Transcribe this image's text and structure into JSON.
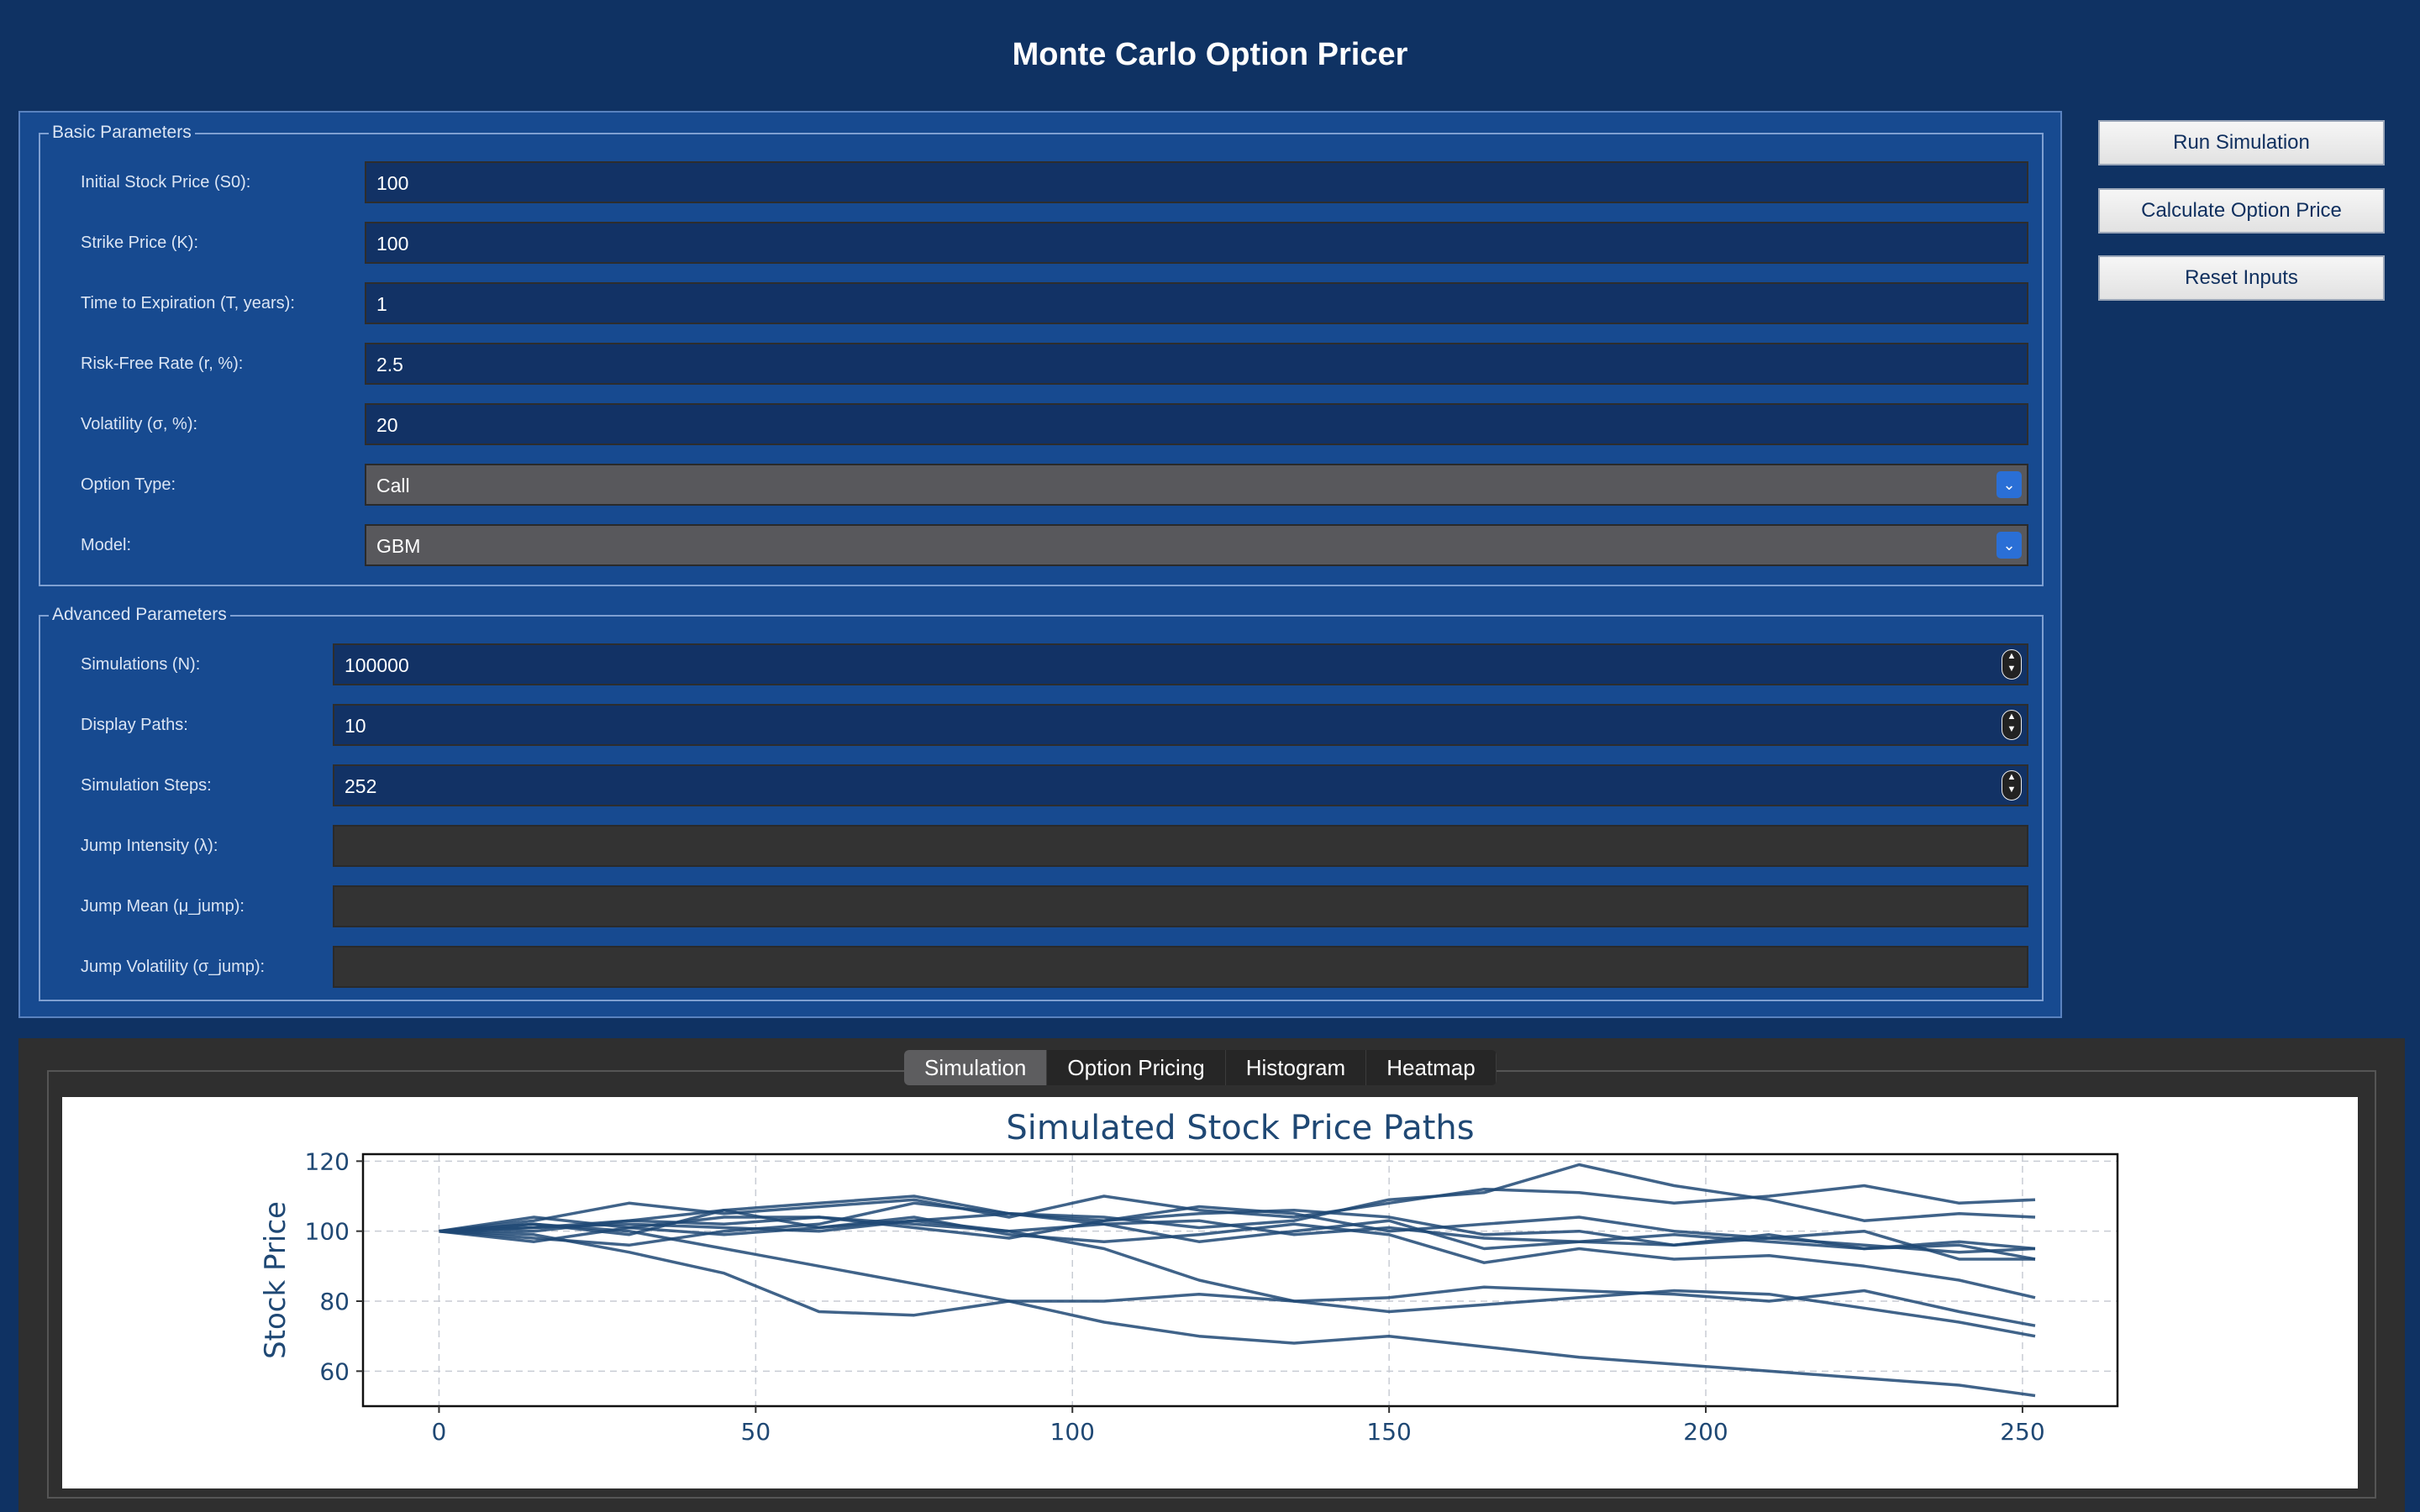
{
  "window": {
    "title": "Monte Carlo Option Pricer"
  },
  "basic": {
    "title": "Basic Parameters",
    "rows": [
      {
        "label": "Initial Stock Price (S0):",
        "value": "100"
      },
      {
        "label": "Strike Price (K):",
        "value": "100"
      },
      {
        "label": "Time to Expiration (T, years):",
        "value": "1"
      },
      {
        "label": "Risk-Free Rate (r, %):",
        "value": "2.5"
      },
      {
        "label": "Volatility (σ, %):",
        "value": "20"
      },
      {
        "label": "Option Type:",
        "value": "Call"
      },
      {
        "label": "Model:",
        "value": "GBM"
      }
    ]
  },
  "advanced": {
    "title": "Advanced Parameters",
    "rows": [
      {
        "label": "Simulations (N):",
        "value": "100000"
      },
      {
        "label": "Display Paths:",
        "value": "10"
      },
      {
        "label": "Simulation Steps:",
        "value": "252"
      },
      {
        "label": "Jump Intensity (λ):",
        "value": ""
      },
      {
        "label": "Jump Mean (μ_jump):",
        "value": ""
      },
      {
        "label": "Jump Volatility (σ_jump):",
        "value": ""
      }
    ]
  },
  "buttons": {
    "run": "Run Simulation",
    "calculate": "Calculate Option Price",
    "reset": "Reset Inputs"
  },
  "tabs": [
    "Simulation",
    "Option Pricing",
    "Histogram",
    "Heatmap"
  ],
  "active_tab": "Simulation",
  "colors": {
    "background": "#0f3263",
    "panel": "#174a90",
    "line": "#1f4874",
    "accent": "#2a6fd6"
  },
  "chart_data": {
    "type": "line",
    "title": "Simulated Stock Price Paths",
    "xlabel": "",
    "ylabel": "Stock Price",
    "xlim": [
      -12,
      265
    ],
    "ylim": [
      50,
      122
    ],
    "xticks": [
      0,
      50,
      100,
      150,
      200,
      250
    ],
    "yticks": [
      60,
      80,
      100,
      120
    ],
    "grid": true,
    "x": [
      0,
      15,
      30,
      45,
      60,
      75,
      90,
      105,
      120,
      135,
      150,
      165,
      180,
      195,
      210,
      225,
      240,
      252
    ],
    "series": [
      {
        "values": [
          100,
          103,
          108,
          105,
          107,
          109,
          104,
          110,
          106,
          104,
          108,
          112,
          111,
          108,
          110,
          113,
          108,
          109
        ]
      },
      {
        "values": [
          100,
          98,
          96,
          100,
          102,
          108,
          105,
          104,
          101,
          103,
          109,
          111,
          119,
          113,
          109,
          103,
          105,
          104
        ]
      },
      {
        "values": [
          100,
          99,
          94,
          88,
          77,
          76,
          80,
          80,
          82,
          80,
          81,
          84,
          83,
          82,
          80,
          83,
          77,
          73
        ]
      },
      {
        "values": [
          100,
          101,
          102,
          101,
          100,
          103,
          100,
          95,
          86,
          80,
          77,
          79,
          81,
          83,
          82,
          78,
          74,
          70
        ]
      },
      {
        "values": [
          100,
          102,
          100,
          95,
          90,
          85,
          80,
          74,
          70,
          68,
          70,
          67,
          64,
          62,
          60,
          58,
          56,
          53
        ]
      },
      {
        "values": [
          100,
          104,
          101,
          99,
          101,
          103,
          105,
          102,
          97,
          100,
          103,
          95,
          97,
          99,
          97,
          95,
          96,
          92
        ]
      },
      {
        "values": [
          100,
          97,
          101,
          104,
          104,
          102,
          100,
          102,
          103,
          99,
          101,
          98,
          97,
          96,
          99,
          95,
          97,
          95
        ]
      },
      {
        "values": [
          100,
          102,
          99,
          106,
          108,
          110,
          105,
          103,
          107,
          105,
          100,
          102,
          104,
          100,
          98,
          96,
          94,
          95
        ]
      },
      {
        "values": [
          100,
          100,
          103,
          102,
          104,
          101,
          98,
          103,
          105,
          106,
          104,
          99,
          100,
          96,
          98,
          100,
          92,
          92
        ]
      },
      {
        "values": [
          100,
          101,
          103,
          106,
          101,
          104,
          99,
          97,
          99,
          102,
          99,
          91,
          95,
          92,
          93,
          90,
          86,
          81
        ]
      }
    ]
  }
}
